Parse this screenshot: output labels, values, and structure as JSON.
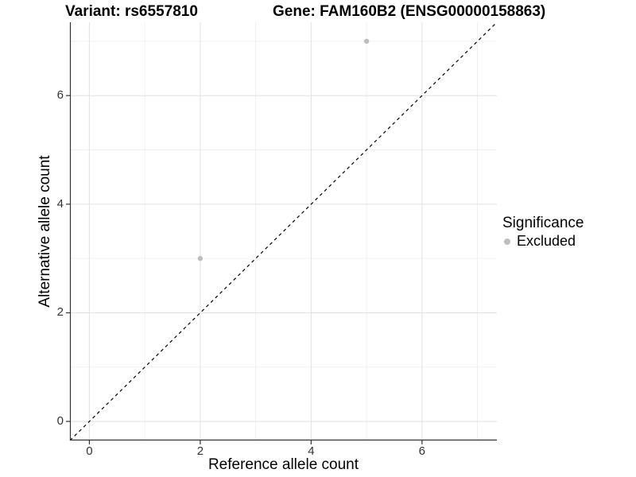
{
  "chart_data": {
    "type": "scatter",
    "title_left": "Variant: rs6557810",
    "title_right": "Gene: FAM160B2 (ENSG00000158863)",
    "xlabel": "Reference allele count",
    "ylabel": "Alternative allele count",
    "xlim": [
      -0.35,
      7.35
    ],
    "ylim": [
      -0.35,
      7.35
    ],
    "x_ticks": [
      0,
      2,
      4,
      6
    ],
    "y_ticks": [
      0,
      2,
      4,
      6
    ],
    "x_minor_ticks": [
      1,
      3,
      5,
      7
    ],
    "y_minor_ticks": [
      1,
      3,
      5,
      7
    ],
    "grid": true,
    "legend_position": "right",
    "series": [
      {
        "name": "Excluded",
        "color": "#bebebe",
        "points": [
          {
            "x": 2,
            "y": 3
          },
          {
            "x": 5,
            "y": 7
          }
        ]
      }
    ],
    "reference_line": {
      "kind": "identity",
      "slope": 1,
      "intercept": 0,
      "style": "dashed",
      "color": "#000000"
    },
    "legend": {
      "title": "Significance",
      "items": [
        {
          "label": "Excluded",
          "color": "#bebebe"
        }
      ]
    }
  },
  "colors": {
    "background": "#ffffff",
    "axis_line": "#333333",
    "tick_mark": "#333333",
    "grid_major": "#e2e2e2",
    "grid_minor": "#ededed",
    "point": "#bebebe",
    "text": "#000000",
    "tick_text": "#333333"
  }
}
